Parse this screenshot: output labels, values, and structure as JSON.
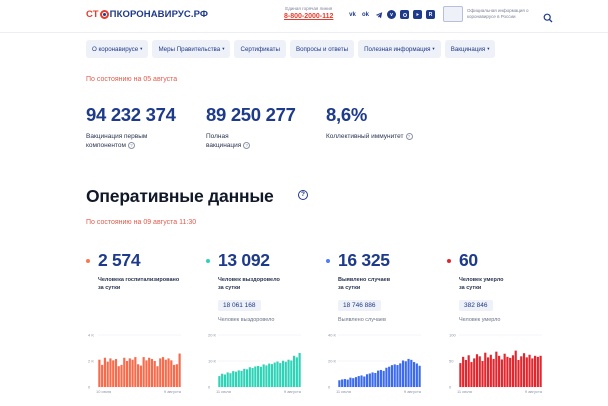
{
  "header": {
    "logo_part1": "СТ",
    "logo_part2": "ПКОРОНАВИРУС.РФ",
    "hotline_label": "Единая горячая линия",
    "hotline_number": "8-800-2000-112",
    "social_icons": [
      "vk-icon",
      "ok-icon",
      "telegram-icon",
      "viber-icon",
      "instagram-icon",
      "youtube-icon",
      "rutube-icon"
    ],
    "gov_text": "Официальная информация о коронавирусе в России"
  },
  "nav": [
    {
      "label": "О коронавирусе",
      "has_caret": true
    },
    {
      "label": "Меры Правительства",
      "has_caret": true
    },
    {
      "label": "Сертификаты",
      "has_caret": false
    },
    {
      "label": "Вопросы и ответы",
      "has_caret": false
    },
    {
      "label": "Полезная информация",
      "has_caret": true
    },
    {
      "label": "Вакцинация",
      "has_caret": true
    }
  ],
  "vaccination": {
    "as_of": "По состоянию на 05 августа",
    "first_component": {
      "value": "94 232 374",
      "label_line1": "Вакцинация первым",
      "label_line2": "компонентом"
    },
    "full": {
      "value": "89 250 277",
      "label_line1": "Полная",
      "label_line2": "вакцинация"
    },
    "herd": {
      "value": "8,6%",
      "label_line1": "Коллективный иммунитет"
    }
  },
  "operational": {
    "title": "Оперативные данные",
    "as_of": "По состоянию на 09 августа 11:30",
    "cards": [
      {
        "value": "2 574",
        "desc_line1": "Человека госпитализировано",
        "desc_line2": "за сутки",
        "total": "",
        "total_label": "",
        "color": "#f97a4d"
      },
      {
        "value": "13 092",
        "desc_line1": "Человек выздоровело",
        "desc_line2": "за сутки",
        "total": "18 061 168",
        "total_label": "Человек выздоровело",
        "color": "#2ed3b7"
      },
      {
        "value": "16 325",
        "desc_line1": "Выявлено случаев",
        "desc_line2": "за сутки",
        "total": "18 746 886",
        "total_label": "Выявлено случаев",
        "color": "#4f7df5"
      },
      {
        "value": "60",
        "desc_line1": "Человек умерло",
        "desc_line2": "за сутки",
        "total": "382 846",
        "total_label": "Человек умерло",
        "color": "#e3262e"
      }
    ]
  },
  "chart_data": [
    {
      "type": "bar",
      "color": "#f96a4a",
      "y_ticks": [
        "4 K",
        "2 K",
        "0"
      ],
      "ylim": [
        0,
        4000
      ],
      "x_start": "10 июля",
      "x_end": "9 августа",
      "values": [
        2100,
        1700,
        2250,
        1950,
        2200,
        2050,
        2150,
        1600,
        1700,
        2250,
        2000,
        2200,
        2100,
        2300,
        1750,
        1650,
        2300,
        2050,
        2250,
        2150,
        2000,
        1600,
        2200,
        2300,
        2100,
        2200,
        2050,
        1700,
        1750,
        2574
      ]
    },
    {
      "type": "bar",
      "color": "#2ed3b7",
      "y_ticks": [
        "20 K",
        "10 K",
        "0"
      ],
      "ylim": [
        0,
        20000
      ],
      "x_start": "11 июля",
      "x_end": "9 августа",
      "values": [
        4200,
        5100,
        4800,
        5600,
        5300,
        6100,
        5900,
        6400,
        6200,
        7000,
        6800,
        7600,
        7300,
        7900,
        8100,
        7800,
        8700,
        8300,
        9000,
        8800,
        9400,
        9800,
        9200,
        10100,
        9700,
        10500,
        10200,
        12000,
        11400,
        13092
      ]
    },
    {
      "type": "bar",
      "color": "#3b6af0",
      "y_ticks": [
        "40 K",
        "20 K",
        "0"
      ],
      "ylim": [
        0,
        40000
      ],
      "x_start": "11 июля",
      "x_end": "9 августа",
      "values": [
        5200,
        5800,
        6100,
        5700,
        7200,
        6800,
        7600,
        8400,
        8900,
        8100,
        9800,
        10400,
        11200,
        10800,
        12600,
        13100,
        12400,
        14800,
        15600,
        16800,
        17400,
        16900,
        18200,
        20400,
        19800,
        21600,
        20900,
        19200,
        18100,
        16325
      ]
    },
    {
      "type": "bar",
      "color": "#e3262e",
      "y_ticks": [
        "100",
        "50",
        "0"
      ],
      "ylim": [
        0,
        100
      ],
      "x_start": "11 июля",
      "x_end": "9 августа",
      "values": [
        46,
        58,
        52,
        61,
        48,
        55,
        63,
        59,
        50,
        66,
        57,
        62,
        54,
        68,
        60,
        53,
        64,
        58,
        56,
        61,
        70,
        52,
        59,
        65,
        57,
        62,
        55,
        60,
        58,
        60
      ]
    }
  ]
}
